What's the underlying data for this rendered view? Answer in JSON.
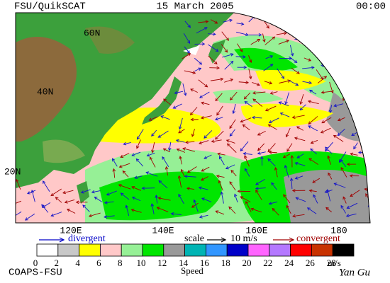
{
  "header": {
    "left": "FSU/QuikSCAT",
    "center": "15 March 2005",
    "right": "00:00"
  },
  "lat_labels": [
    "60N",
    "40N",
    "20N"
  ],
  "lon_labels": [
    "120E",
    "140E",
    "160E",
    "180"
  ],
  "legend": {
    "divergent": "divergent",
    "scale": "scale",
    "scale_value": "10 m/s",
    "convergent": "convergent"
  },
  "colorbar": {
    "ticks": [
      0,
      2,
      4,
      6,
      8,
      10,
      12,
      14,
      16,
      18,
      20,
      22,
      24,
      26,
      28
    ],
    "unit": "m/s",
    "label": "Speed",
    "colors": [
      "#ffffff",
      "#c8c8c8",
      "#ffff00",
      "#ffc8c8",
      "#96f096",
      "#00e600",
      "#999999",
      "#00b4b4",
      "#3296ff",
      "#0000c8",
      "#ff64ff",
      "#b478ff",
      "#ff0000",
      "#c83200",
      "#000000"
    ]
  },
  "footer": {
    "left": "COAPS-FSU",
    "signature": "Yan Gu"
  }
}
